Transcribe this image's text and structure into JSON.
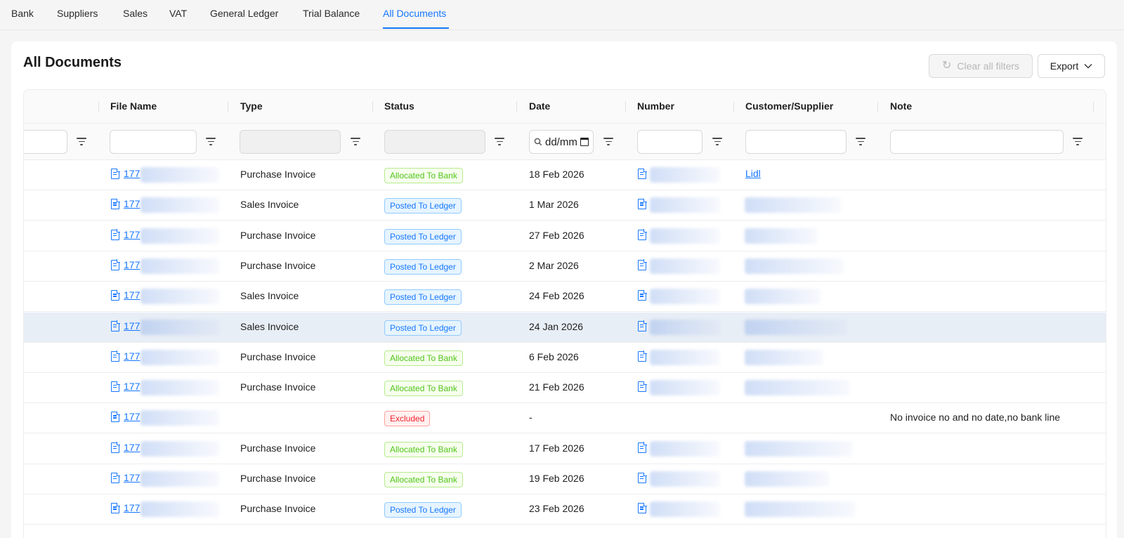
{
  "tabs": [
    {
      "label": "Bank"
    },
    {
      "label": "Suppliers"
    },
    {
      "label": "Sales"
    },
    {
      "label": "VAT"
    },
    {
      "label": "General Ledger"
    },
    {
      "label": "Trial Balance"
    },
    {
      "label": "All Documents",
      "active": true
    }
  ],
  "page": {
    "title": "All Documents",
    "clear_filters_label": "Clear all filters",
    "export_label": "Export"
  },
  "columns": [
    "File Name",
    "Type",
    "Status",
    "Date",
    "Number",
    "Customer/Supplier",
    "Note"
  ],
  "filters": {
    "date_placeholder": "dd/mm"
  },
  "colors": {
    "accent": "#1677ff",
    "allocated": "#52c41a",
    "posted": "#1677ff",
    "excluded": "#f5222d",
    "row_highlight": "#e8eef6"
  },
  "rows": [
    {
      "file": "177",
      "type": "Purchase Invoice",
      "status": "Allocated To Bank",
      "status_kind": "alloc",
      "date": "18 Feb 2026",
      "number_icon": true,
      "customer": "Lidl",
      "note": ""
    },
    {
      "file": "177",
      "type": "Sales Invoice",
      "status": "Posted To Ledger",
      "status_kind": "posted",
      "date": "1 Mar 2026",
      "number_icon": true,
      "customer": "",
      "note": ""
    },
    {
      "file": "177",
      "type": "Purchase Invoice",
      "status": "Posted To Ledger",
      "status_kind": "posted",
      "date": "27 Feb 2026",
      "number_icon": true,
      "customer": "",
      "note": ""
    },
    {
      "file": "177",
      "type": "Purchase Invoice",
      "status": "Posted To Ledger",
      "status_kind": "posted",
      "date": "2 Mar 2026",
      "number_icon": true,
      "customer": "",
      "note": ""
    },
    {
      "file": "177",
      "type": "Sales Invoice",
      "status": "Posted To Ledger",
      "status_kind": "posted",
      "date": "24 Feb 2026",
      "number_icon": true,
      "customer": "",
      "note": ""
    },
    {
      "file": "177",
      "type": "Sales Invoice",
      "status": "Posted To Ledger",
      "status_kind": "posted",
      "date": "24 Jan 2026",
      "number_icon": true,
      "customer": "",
      "note": "",
      "highlight": true
    },
    {
      "file": "177",
      "type": "Purchase Invoice",
      "status": "Allocated To Bank",
      "status_kind": "alloc",
      "date": "6 Feb 2026",
      "number_icon": true,
      "customer": "",
      "note": ""
    },
    {
      "file": "177",
      "type": "Purchase Invoice",
      "status": "Allocated To Bank",
      "status_kind": "alloc",
      "date": "21 Feb 2026",
      "number_icon": true,
      "customer": "",
      "note": ""
    },
    {
      "file": "177",
      "type": "",
      "status": "Excluded",
      "status_kind": "excluded",
      "date": "-",
      "number_icon": false,
      "customer": "",
      "note": "No invoice no and no date,no bank line"
    },
    {
      "file": "177",
      "type": "Purchase Invoice",
      "status": "Allocated To Bank",
      "status_kind": "alloc",
      "date": "17 Feb 2026",
      "number_icon": true,
      "customer": "",
      "note": ""
    },
    {
      "file": "177",
      "type": "Purchase Invoice",
      "status": "Allocated To Bank",
      "status_kind": "alloc",
      "date": "19 Feb 2026",
      "number_icon": true,
      "customer": "",
      "note": ""
    },
    {
      "file": "177",
      "type": "Purchase Invoice",
      "status": "Posted To Ledger",
      "status_kind": "posted",
      "date": "23 Feb 2026",
      "number_icon": true,
      "customer": "",
      "note": ""
    }
  ]
}
